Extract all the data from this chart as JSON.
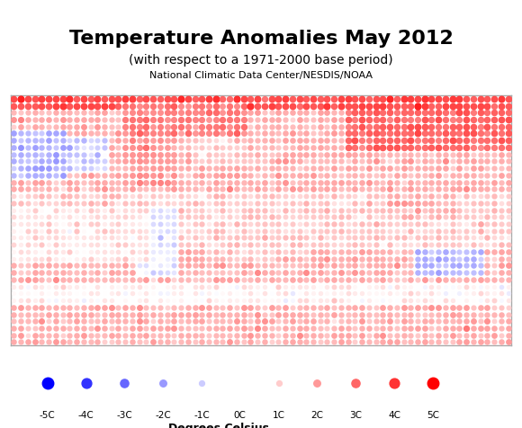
{
  "title": "Temperature Anomalies May 2012",
  "subtitle": "(with respect to a 1971-2000 base period)",
  "source": "National Climatic Data Center/NESDIS/NOAA",
  "xlabel": "Degrees Celsius",
  "legend_values": [
    -5,
    -4,
    -3,
    -2,
    -1,
    0,
    1,
    2,
    3,
    4,
    5
  ],
  "legend_labels": [
    "-5C",
    "-4C",
    "-3C",
    "-2C",
    "-1C",
    "0C",
    "1C",
    "2C",
    "3C",
    "4C",
    "5C"
  ],
  "cold_color": "#0000CC",
  "warm_color": "#CC0000",
  "bg_color": "#ffffff",
  "map_bg": "#ffffff",
  "border_color": "#aaaaaa"
}
